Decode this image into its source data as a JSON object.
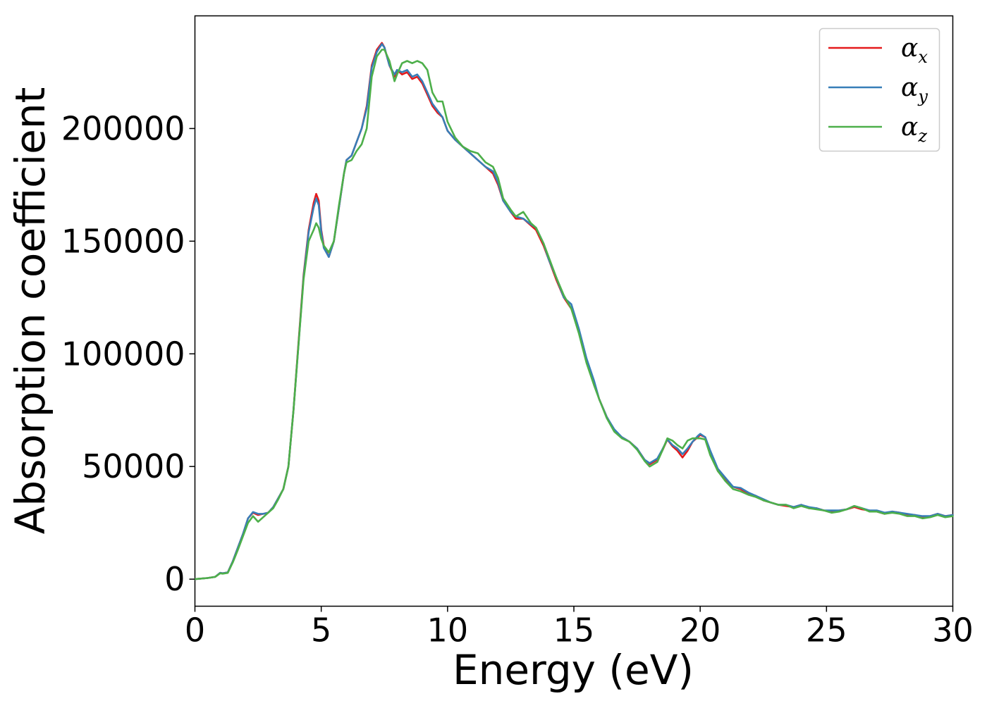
{
  "chart_data": {
    "type": "line",
    "title": "",
    "xlabel": "Energy (eV)",
    "ylabel": "Absorption coefficient",
    "xlim": [
      0,
      30
    ],
    "ylim": [
      -12000,
      250000
    ],
    "xticks": [
      0,
      5,
      10,
      15,
      20,
      25,
      30
    ],
    "xtick_labels": [
      "0",
      "5",
      "10",
      "15",
      "20",
      "25",
      "30"
    ],
    "yticks": [
      0,
      50000,
      100000,
      150000,
      200000
    ],
    "ytick_labels": [
      "0",
      "50000",
      "100000",
      "150000",
      "200000"
    ],
    "grid": false,
    "legend_position": "top-right",
    "series": [
      {
        "name": "α_x",
        "legend_symbol": "α",
        "legend_subscript": "x",
        "color": "#e41a1c",
        "x": [
          0,
          0.5,
          0.8,
          1.0,
          1.1,
          1.3,
          1.5,
          1.7,
          1.9,
          2.1,
          2.3,
          2.5,
          2.7,
          2.9,
          3.1,
          3.3,
          3.5,
          3.7,
          3.9,
          4.1,
          4.3,
          4.5,
          4.7,
          4.8,
          4.9,
          5.0,
          5.1,
          5.3,
          5.5,
          5.7,
          5.9,
          6.0,
          6.2,
          6.4,
          6.6,
          6.8,
          7.0,
          7.2,
          7.4,
          7.5,
          7.7,
          7.9,
          8.0,
          8.2,
          8.4,
          8.6,
          8.8,
          9.0,
          9.2,
          9.4,
          9.6,
          9.8,
          10.0,
          10.3,
          10.6,
          10.9,
          11.2,
          11.5,
          11.8,
          12.0,
          12.2,
          12.5,
          12.7,
          13.0,
          13.3,
          13.5,
          13.8,
          14.0,
          14.3,
          14.6,
          14.9,
          15.2,
          15.5,
          15.8,
          16.0,
          16.3,
          16.6,
          16.9,
          17.2,
          17.5,
          17.8,
          18.0,
          18.3,
          18.5,
          18.7,
          18.9,
          19.1,
          19.3,
          19.5,
          19.7,
          19.9,
          20.0,
          20.2,
          20.4,
          20.7,
          21.0,
          21.3,
          21.6,
          21.9,
          22.2,
          22.5,
          22.8,
          23.1,
          23.4,
          23.7,
          24.0,
          24.3,
          24.6,
          24.9,
          25.2,
          25.5,
          25.8,
          26.1,
          26.4,
          26.7,
          27.0,
          27.3,
          27.6,
          27.9,
          28.2,
          28.5,
          28.8,
          29.1,
          29.4,
          29.7,
          30.0
        ],
        "y": [
          0,
          500,
          1000,
          2800,
          2600,
          3000,
          8000,
          14000,
          20000,
          27000,
          29500,
          28500,
          29000,
          29500,
          32000,
          36000,
          40000,
          50000,
          75000,
          105000,
          135000,
          155000,
          167000,
          171000,
          168000,
          155000,
          148000,
          143000,
          150000,
          165000,
          180000,
          186000,
          188000,
          194000,
          200000,
          210000,
          228000,
          235000,
          238000,
          236000,
          228000,
          223000,
          226000,
          224000,
          225000,
          222000,
          223000,
          220000,
          215000,
          210000,
          207000,
          205000,
          199000,
          195000,
          192000,
          189000,
          186000,
          183000,
          180000,
          175000,
          168000,
          163000,
          160000,
          160000,
          157000,
          155000,
          148000,
          142000,
          133000,
          125000,
          120000,
          110000,
          97000,
          87000,
          80000,
          72000,
          66000,
          63000,
          61000,
          58000,
          53000,
          51000,
          53000,
          57000,
          62000,
          59000,
          57000,
          54000,
          57000,
          61000,
          63000,
          64000,
          63000,
          56000,
          48000,
          44000,
          41000,
          40000,
          38000,
          37000,
          35000,
          34000,
          33000,
          32500,
          32000,
          33000,
          31500,
          31500,
          30500,
          30000,
          30500,
          31000,
          32000,
          31000,
          30500,
          30000,
          29000,
          30000,
          29500,
          28500,
          28500,
          27500,
          28000,
          29000,
          28000,
          28500
        ]
      },
      {
        "name": "α_y",
        "legend_symbol": "α",
        "legend_subscript": "y",
        "color": "#377eb8",
        "x": [
          0,
          0.5,
          0.8,
          1.0,
          1.1,
          1.3,
          1.5,
          1.7,
          1.9,
          2.1,
          2.3,
          2.5,
          2.7,
          2.9,
          3.1,
          3.3,
          3.5,
          3.7,
          3.9,
          4.1,
          4.3,
          4.5,
          4.7,
          4.8,
          4.9,
          5.0,
          5.1,
          5.3,
          5.5,
          5.7,
          5.9,
          6.0,
          6.2,
          6.4,
          6.6,
          6.8,
          7.0,
          7.2,
          7.4,
          7.5,
          7.7,
          7.9,
          8.0,
          8.2,
          8.4,
          8.6,
          8.8,
          9.0,
          9.2,
          9.4,
          9.6,
          9.8,
          10.0,
          10.3,
          10.6,
          10.9,
          11.2,
          11.5,
          11.8,
          12.0,
          12.2,
          12.5,
          12.7,
          13.0,
          13.3,
          13.5,
          13.8,
          14.0,
          14.3,
          14.6,
          14.9,
          15.2,
          15.5,
          15.8,
          16.0,
          16.3,
          16.6,
          16.9,
          17.2,
          17.5,
          17.8,
          18.0,
          18.3,
          18.5,
          18.7,
          18.9,
          19.1,
          19.3,
          19.5,
          19.7,
          19.9,
          20.0,
          20.2,
          20.4,
          20.7,
          21.0,
          21.3,
          21.6,
          21.9,
          22.2,
          22.5,
          22.8,
          23.1,
          23.4,
          23.7,
          24.0,
          24.3,
          24.6,
          24.9,
          25.2,
          25.5,
          25.8,
          26.1,
          26.4,
          26.7,
          27.0,
          27.3,
          27.6,
          27.9,
          28.2,
          28.5,
          28.8,
          29.1,
          29.4,
          29.7,
          30.0
        ],
        "y": [
          0,
          500,
          1000,
          2800,
          2600,
          3000,
          8000,
          14000,
          20000,
          27000,
          29800,
          29000,
          29000,
          29500,
          32000,
          36000,
          40000,
          50000,
          75000,
          104000,
          134000,
          154000,
          165000,
          169000,
          166000,
          154000,
          147000,
          143000,
          150000,
          165000,
          180000,
          186000,
          188000,
          194000,
          200000,
          209000,
          227000,
          234000,
          237500,
          236000,
          228000,
          224000,
          226000,
          225000,
          226000,
          223000,
          224000,
          221000,
          216000,
          211000,
          208000,
          205000,
          199000,
          195000,
          192000,
          189000,
          186000,
          183000,
          181000,
          176000,
          168000,
          163000,
          161000,
          160000,
          157500,
          156000,
          149000,
          142000,
          134000,
          125000,
          122000,
          111000,
          98000,
          88000,
          80000,
          72000,
          66500,
          63000,
          61000,
          58000,
          53000,
          51500,
          53500,
          57500,
          62000,
          59500,
          58000,
          55500,
          58000,
          61000,
          63500,
          64500,
          63000,
          57000,
          49000,
          45000,
          41000,
          40500,
          38500,
          37000,
          35500,
          34000,
          33000,
          33000,
          32000,
          33000,
          32000,
          31500,
          30500,
          30500,
          30500,
          31000,
          32500,
          31500,
          30500,
          30500,
          29500,
          30000,
          29500,
          29000,
          28500,
          28000,
          28000,
          29000,
          28000,
          28500
        ]
      },
      {
        "name": "α_z",
        "legend_symbol": "α",
        "legend_subscript": "z",
        "color": "#4daf4a",
        "x": [
          0,
          0.5,
          0.8,
          1.0,
          1.1,
          1.3,
          1.5,
          1.7,
          1.9,
          2.1,
          2.3,
          2.5,
          2.7,
          2.9,
          3.1,
          3.3,
          3.5,
          3.7,
          3.9,
          4.1,
          4.3,
          4.5,
          4.7,
          4.8,
          4.9,
          5.0,
          5.1,
          5.3,
          5.5,
          5.7,
          5.9,
          6.0,
          6.2,
          6.4,
          6.6,
          6.8,
          7.0,
          7.2,
          7.4,
          7.5,
          7.7,
          7.9,
          8.0,
          8.2,
          8.4,
          8.6,
          8.8,
          9.0,
          9.2,
          9.4,
          9.6,
          9.8,
          10.0,
          10.3,
          10.6,
          10.9,
          11.2,
          11.5,
          11.8,
          12.0,
          12.2,
          12.5,
          12.7,
          13.0,
          13.3,
          13.5,
          13.8,
          14.0,
          14.3,
          14.6,
          14.9,
          15.2,
          15.5,
          15.8,
          16.0,
          16.3,
          16.6,
          16.9,
          17.2,
          17.5,
          17.8,
          18.0,
          18.3,
          18.5,
          18.7,
          18.9,
          19.1,
          19.3,
          19.5,
          19.7,
          19.9,
          20.0,
          20.2,
          20.4,
          20.7,
          21.0,
          21.3,
          21.6,
          21.9,
          22.2,
          22.5,
          22.8,
          23.1,
          23.4,
          23.7,
          24.0,
          24.3,
          24.6,
          24.9,
          25.2,
          25.5,
          25.8,
          26.1,
          26.4,
          26.7,
          27.0,
          27.3,
          27.6,
          27.9,
          28.2,
          28.5,
          28.8,
          29.1,
          29.4,
          29.7,
          30.0
        ],
        "y": [
          0,
          500,
          1000,
          2600,
          2400,
          2800,
          7500,
          13000,
          19000,
          25000,
          28000,
          25500,
          27500,
          29500,
          31500,
          35500,
          40000,
          50000,
          75000,
          104000,
          133000,
          150000,
          155000,
          158000,
          156000,
          151000,
          148000,
          145000,
          150000,
          166000,
          180000,
          185000,
          186000,
          190000,
          193000,
          200000,
          223000,
          232000,
          235000,
          235000,
          230000,
          221000,
          224000,
          229000,
          230000,
          229000,
          230000,
          229000,
          226000,
          216000,
          212000,
          212000,
          203000,
          196000,
          192000,
          190000,
          189000,
          185000,
          183000,
          178000,
          169000,
          164000,
          161000,
          163000,
          158000,
          156000,
          149000,
          143000,
          134000,
          126000,
          120000,
          109000,
          96000,
          86000,
          80000,
          71500,
          65500,
          62500,
          61000,
          57500,
          52500,
          50000,
          52000,
          57000,
          62500,
          61500,
          59500,
          58000,
          61500,
          62500,
          62500,
          62500,
          62000,
          55000,
          48000,
          43500,
          40000,
          39000,
          37500,
          36500,
          35000,
          34000,
          33000,
          33000,
          31500,
          32500,
          31500,
          31000,
          30500,
          29500,
          30000,
          31000,
          32500,
          31500,
          30000,
          30000,
          29000,
          29500,
          29000,
          28000,
          28000,
          27000,
          27500,
          28500,
          27500,
          28000
        ]
      }
    ]
  }
}
